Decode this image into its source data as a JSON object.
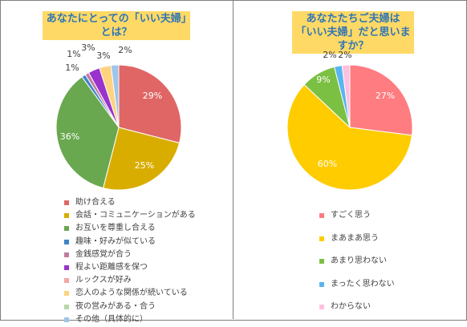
{
  "chart_data": [
    {
      "type": "pie",
      "title": "あなたにとっての「いい夫婦」とは？",
      "series": [
        {
          "name": "助け合える",
          "value": 29,
          "label": "29%",
          "color": "#e06666"
        },
        {
          "name": "会話・コミュニケーションがある",
          "value": 25,
          "label": "25%",
          "color": "#d9ad00"
        },
        {
          "name": "お互いを尊重し合える",
          "value": 36,
          "label": "36%",
          "color": "#6aa84f"
        },
        {
          "name": "趣味・好みが似ている",
          "value": 1,
          "label": "1%",
          "color": "#3d85c6"
        },
        {
          "name": "金銭感覚が合う",
          "value": 1,
          "label": "1%",
          "color": "#c27ba0"
        },
        {
          "name": "程よい距離感を保つ",
          "value": 3,
          "label": "3%",
          "color": "#9933cc"
        },
        {
          "name": "ルックスが好み",
          "value": 0,
          "label": "",
          "color": "#f4a6a6"
        },
        {
          "name": "恋人のような関係が続いている",
          "value": 3,
          "label": "3%",
          "color": "#ffd27f"
        },
        {
          "name": "夜の営みがある・合う",
          "value": 0,
          "label": "",
          "color": "#b6d7a8"
        },
        {
          "name": "その他（具体的に）",
          "value": 2,
          "label": "2%",
          "color": "#9fc5e8"
        }
      ]
    },
    {
      "type": "pie",
      "title": "あなたたちご夫婦は「いい夫婦」だと思いますか？",
      "title_lines": [
        "あなたたちご夫婦は",
        "「いい夫婦」だと思いますか？"
      ],
      "series": [
        {
          "name": "すごく思う",
          "value": 27,
          "label": "27%",
          "color": "#ff7c80"
        },
        {
          "name": "まあまあ思う",
          "value": 60,
          "label": "60%",
          "color": "#ffcc00"
        },
        {
          "name": "あまり思わない",
          "value": 9,
          "label": "9%",
          "color": "#7bc043"
        },
        {
          "name": "まったく思わない",
          "value": 2,
          "label": "2%",
          "color": "#5ab4f0"
        },
        {
          "name": "わからない",
          "value": 2,
          "label": "2%",
          "color": "#ffc0e0"
        }
      ]
    }
  ]
}
